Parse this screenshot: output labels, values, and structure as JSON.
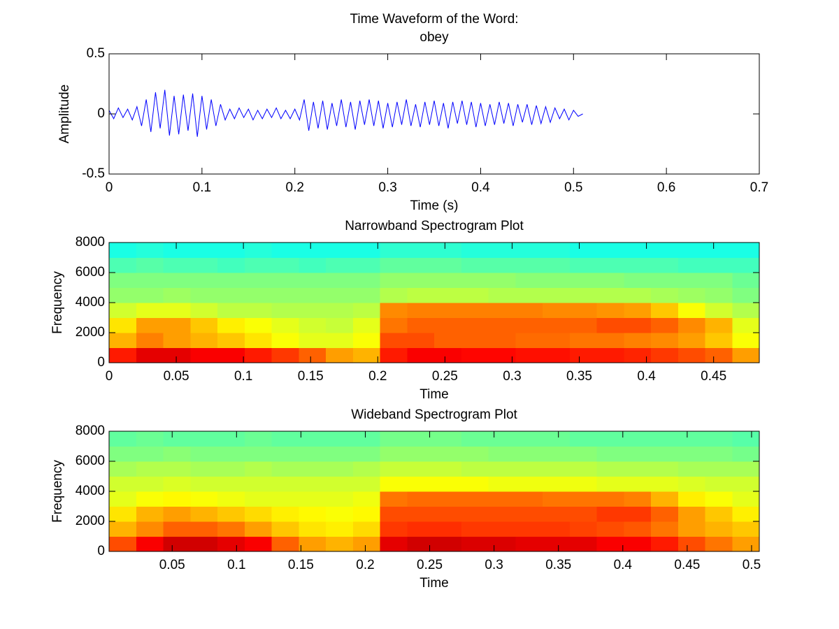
{
  "chart_data": [
    {
      "type": "line",
      "title": [
        "Time Waveform of the Word:",
        "obey"
      ],
      "xlabel": "Time (s)",
      "ylabel": "Amplitude",
      "color": "#0000ff",
      "xlim": [
        0,
        0.7
      ],
      "ylim": [
        -0.5,
        0.5
      ],
      "xticks": [
        0,
        0.1,
        0.2,
        0.3,
        0.4,
        0.5,
        0.6,
        0.7
      ],
      "yticks": [
        -0.5,
        0,
        0.5
      ],
      "x": [
        0,
        0.005,
        0.01,
        0.015,
        0.02,
        0.025,
        0.03,
        0.035,
        0.04,
        0.045,
        0.05,
        0.055,
        0.06,
        0.065,
        0.07,
        0.075,
        0.08,
        0.085,
        0.09,
        0.095,
        0.1,
        0.105,
        0.11,
        0.115,
        0.12,
        0.125,
        0.13,
        0.135,
        0.14,
        0.145,
        0.15,
        0.155,
        0.16,
        0.165,
        0.17,
        0.175,
        0.18,
        0.185,
        0.19,
        0.195,
        0.2,
        0.205,
        0.21,
        0.215,
        0.22,
        0.225,
        0.23,
        0.235,
        0.24,
        0.245,
        0.25,
        0.255,
        0.26,
        0.265,
        0.27,
        0.275,
        0.28,
        0.285,
        0.29,
        0.295,
        0.3,
        0.305,
        0.31,
        0.315,
        0.32,
        0.325,
        0.33,
        0.335,
        0.34,
        0.345,
        0.35,
        0.355,
        0.36,
        0.365,
        0.37,
        0.375,
        0.38,
        0.385,
        0.39,
        0.395,
        0.4,
        0.405,
        0.41,
        0.415,
        0.42,
        0.425,
        0.43,
        0.435,
        0.44,
        0.445,
        0.45,
        0.455,
        0.46,
        0.465,
        0.47,
        0.475,
        0.48,
        0.485,
        0.49,
        0.495,
        0.5,
        0.505,
        0.51
      ],
      "values": [
        0.03,
        -0.04,
        0.05,
        -0.03,
        0.04,
        -0.05,
        0.06,
        -0.1,
        0.12,
        -0.15,
        0.18,
        -0.12,
        0.2,
        -0.18,
        0.15,
        -0.17,
        0.16,
        -0.14,
        0.17,
        -0.19,
        0.15,
        -0.13,
        0.12,
        -0.1,
        0.08,
        -0.05,
        0.04,
        -0.04,
        0.05,
        -0.03,
        0.04,
        -0.05,
        0.03,
        -0.04,
        0.04,
        -0.03,
        0.05,
        -0.04,
        0.03,
        -0.04,
        0.04,
        -0.05,
        0.12,
        -0.14,
        0.1,
        -0.12,
        0.11,
        -0.13,
        0.09,
        -0.1,
        0.12,
        -0.11,
        0.1,
        -0.13,
        0.11,
        -0.09,
        0.12,
        -0.1,
        0.11,
        -0.12,
        0.09,
        -0.11,
        0.1,
        -0.09,
        0.12,
        -0.1,
        0.08,
        -0.11,
        0.1,
        -0.09,
        0.11,
        -0.1,
        0.09,
        -0.12,
        0.1,
        -0.08,
        0.11,
        -0.09,
        0.1,
        -0.11,
        0.09,
        -0.1,
        0.08,
        -0.09,
        0.1,
        -0.08,
        0.09,
        -0.1,
        0.08,
        -0.07,
        0.08,
        -0.09,
        0.07,
        -0.08,
        0.06,
        -0.07,
        0.05,
        -0.04,
        0.04,
        -0.05,
        0.03,
        -0.02,
        0.0
      ]
    },
    {
      "type": "heatmap",
      "title": "Narrowband Spectrogram Plot",
      "xlabel": "Time",
      "ylabel": "Frequency",
      "colormap": "jet",
      "xlim": [
        0,
        0.484
      ],
      "ylim": [
        0,
        8000
      ],
      "xticks": [
        0,
        0.05,
        0.1,
        0.15,
        0.2,
        0.25,
        0.3,
        0.35,
        0.4,
        0.45
      ],
      "yticks": [
        0,
        2000,
        4000,
        6000,
        8000
      ],
      "z": [
        [
          0.85,
          0.9,
          0.9,
          0.88,
          0.88,
          0.85,
          0.82,
          0.78,
          0.72,
          0.7,
          0.85,
          0.88,
          0.88,
          0.87,
          0.87,
          0.86,
          0.86,
          0.85,
          0.85,
          0.84,
          0.82,
          0.8,
          0.78,
          0.72
        ],
        [
          0.7,
          0.75,
          0.72,
          0.7,
          0.68,
          0.65,
          0.62,
          0.6,
          0.6,
          0.62,
          0.8,
          0.8,
          0.78,
          0.78,
          0.78,
          0.77,
          0.77,
          0.76,
          0.76,
          0.75,
          0.74,
          0.72,
          0.68,
          0.62
        ],
        [
          0.65,
          0.72,
          0.72,
          0.68,
          0.64,
          0.62,
          0.6,
          0.58,
          0.57,
          0.6,
          0.76,
          0.78,
          0.78,
          0.78,
          0.78,
          0.78,
          0.78,
          0.78,
          0.8,
          0.8,
          0.78,
          0.74,
          0.7,
          0.6
        ],
        [
          0.58,
          0.6,
          0.6,
          0.58,
          0.56,
          0.56,
          0.55,
          0.55,
          0.55,
          0.56,
          0.74,
          0.75,
          0.75,
          0.75,
          0.75,
          0.75,
          0.74,
          0.74,
          0.73,
          0.72,
          0.68,
          0.62,
          0.58,
          0.55
        ],
        [
          0.52,
          0.52,
          0.53,
          0.52,
          0.52,
          0.52,
          0.52,
          0.52,
          0.52,
          0.52,
          0.55,
          0.56,
          0.56,
          0.56,
          0.55,
          0.55,
          0.55,
          0.55,
          0.55,
          0.55,
          0.54,
          0.53,
          0.52,
          0.5
        ],
        [
          0.5,
          0.5,
          0.5,
          0.5,
          0.5,
          0.5,
          0.5,
          0.5,
          0.5,
          0.5,
          0.52,
          0.52,
          0.52,
          0.52,
          0.52,
          0.51,
          0.51,
          0.51,
          0.51,
          0.5,
          0.5,
          0.5,
          0.5,
          0.48
        ],
        [
          0.45,
          0.46,
          0.45,
          0.45,
          0.44,
          0.45,
          0.45,
          0.44,
          0.45,
          0.45,
          0.47,
          0.47,
          0.47,
          0.46,
          0.46,
          0.46,
          0.46,
          0.45,
          0.45,
          0.45,
          0.45,
          0.44,
          0.44,
          0.44
        ],
        [
          0.4,
          0.41,
          0.4,
          0.4,
          0.4,
          0.41,
          0.4,
          0.4,
          0.4,
          0.4,
          0.42,
          0.42,
          0.42,
          0.41,
          0.41,
          0.41,
          0.41,
          0.4,
          0.4,
          0.4,
          0.4,
          0.4,
          0.4,
          0.4
        ]
      ]
    },
    {
      "type": "heatmap",
      "title": "Wideband Spectrogram Plot",
      "xlabel": "Time",
      "ylabel": "Frequency",
      "colormap": "jet",
      "xlim": [
        0.001,
        0.506
      ],
      "ylim": [
        0,
        8000
      ],
      "xticks": [
        0.05,
        0.1,
        0.15,
        0.2,
        0.25,
        0.3,
        0.35,
        0.4,
        0.45,
        0.5
      ],
      "yticks": [
        0,
        2000,
        4000,
        6000,
        8000
      ],
      "z": [
        [
          0.8,
          0.88,
          0.92,
          0.92,
          0.9,
          0.88,
          0.78,
          0.72,
          0.7,
          0.72,
          0.9,
          0.92,
          0.92,
          0.91,
          0.91,
          0.9,
          0.9,
          0.9,
          0.88,
          0.88,
          0.85,
          0.8,
          0.76,
          0.72
        ],
        [
          0.7,
          0.74,
          0.78,
          0.78,
          0.76,
          0.72,
          0.68,
          0.65,
          0.64,
          0.66,
          0.82,
          0.83,
          0.83,
          0.82,
          0.82,
          0.82,
          0.82,
          0.81,
          0.8,
          0.79,
          0.76,
          0.72,
          0.7,
          0.68
        ],
        [
          0.65,
          0.7,
          0.72,
          0.7,
          0.68,
          0.66,
          0.64,
          0.63,
          0.62,
          0.63,
          0.8,
          0.8,
          0.8,
          0.8,
          0.8,
          0.8,
          0.8,
          0.8,
          0.82,
          0.82,
          0.78,
          0.72,
          0.68,
          0.64
        ],
        [
          0.6,
          0.62,
          0.63,
          0.62,
          0.61,
          0.6,
          0.6,
          0.6,
          0.6,
          0.61,
          0.76,
          0.77,
          0.77,
          0.77,
          0.77,
          0.77,
          0.76,
          0.76,
          0.76,
          0.75,
          0.7,
          0.64,
          0.62,
          0.6
        ],
        [
          0.58,
          0.58,
          0.59,
          0.58,
          0.58,
          0.58,
          0.58,
          0.58,
          0.58,
          0.58,
          0.62,
          0.62,
          0.62,
          0.62,
          0.61,
          0.61,
          0.61,
          0.61,
          0.6,
          0.6,
          0.6,
          0.59,
          0.58,
          0.58
        ],
        [
          0.54,
          0.55,
          0.55,
          0.54,
          0.54,
          0.55,
          0.54,
          0.54,
          0.54,
          0.55,
          0.57,
          0.57,
          0.57,
          0.56,
          0.56,
          0.56,
          0.56,
          0.56,
          0.55,
          0.55,
          0.55,
          0.54,
          0.54,
          0.54
        ],
        [
          0.5,
          0.5,
          0.51,
          0.5,
          0.5,
          0.5,
          0.5,
          0.5,
          0.5,
          0.5,
          0.52,
          0.52,
          0.52,
          0.52,
          0.51,
          0.51,
          0.51,
          0.51,
          0.5,
          0.5,
          0.5,
          0.5,
          0.5,
          0.49
        ],
        [
          0.47,
          0.48,
          0.47,
          0.47,
          0.47,
          0.48,
          0.47,
          0.47,
          0.47,
          0.47,
          0.49,
          0.49,
          0.49,
          0.48,
          0.48,
          0.48,
          0.48,
          0.47,
          0.47,
          0.47,
          0.47,
          0.47,
          0.47,
          0.46
        ]
      ]
    }
  ]
}
